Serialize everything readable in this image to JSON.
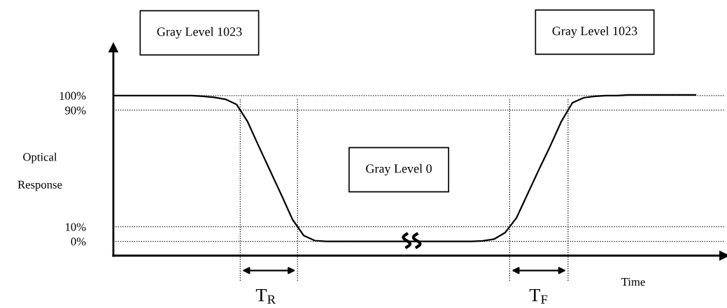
{
  "chart_data": {
    "type": "line",
    "ylabel": "Optical\n\nResponse",
    "xlabel": "Time",
    "categories": [
      null,
      null,
      null,
      null,
      null,
      null,
      null,
      null,
      null,
      null,
      null,
      null,
      null,
      null,
      null,
      null,
      null,
      null,
      null,
      null,
      null,
      null,
      null,
      null,
      null,
      null,
      null,
      null,
      null,
      null,
      null,
      null,
      null,
      null,
      null,
      null,
      null,
      null,
      null,
      null,
      null,
      null,
      null,
      null,
      null,
      null,
      null,
      null,
      null,
      null,
      null,
      null,
      null
    ],
    "series": [
      {
        "color": "#000000",
        "values": [
          100,
          100,
          100,
          100,
          100,
          100,
          100,
          100,
          99.5,
          98.8,
          97.5,
          94,
          82,
          65,
          48.5,
          32,
          15,
          4,
          0.5,
          0,
          0,
          0,
          0,
          0,
          0,
          0,
          0,
          0,
          0,
          0,
          0,
          0,
          0,
          0.3,
          1.5,
          6,
          16,
          32.5,
          49,
          65,
          82,
          95,
          98.5,
          99.5,
          100,
          100,
          100.5,
          100.5,
          100.5,
          100.5,
          100.5,
          100.5,
          100.5
        ]
      }
    ],
    "ylim": [
      -9.8,
      133
    ],
    "yticks": [
      {
        "value": 0,
        "label": "0%"
      },
      {
        "value": 10,
        "label": "10%"
      },
      {
        "value": 90,
        "label": "90%"
      },
      {
        "value": 100,
        "label": "100%"
      }
    ],
    "ref_lines": [
      {
        "axis": "y",
        "value": 100,
        "line_style": "dotted"
      },
      {
        "axis": "y",
        "value": 90,
        "line_style": "dotted"
      },
      {
        "axis": "y",
        "value": 10,
        "line_style": "dotted"
      },
      {
        "axis": "y",
        "value": 0,
        "line_style": "dotted"
      }
    ],
    "annotations": [
      "Gray Level 1023",
      "Gray Level 1023",
      "Gray Level 0",
      "T$_{R}$",
      "T$_{F}$"
    ],
    "grid": false,
    "legend": false,
    "marker": "none",
    "line_style": "solid"
  }
}
